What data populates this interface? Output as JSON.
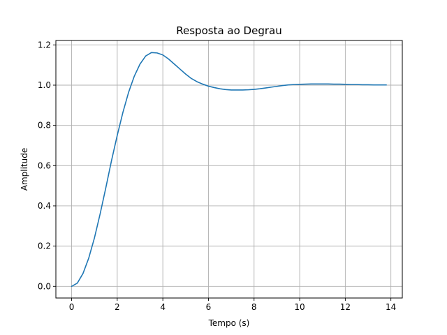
{
  "chart_data": {
    "type": "line",
    "title": "Resposta ao Degrau",
    "xlabel": "Tempo (s)",
    "ylabel": "Amplitude",
    "xlim": [
      -0.69,
      14.5
    ],
    "ylim": [
      -0.058,
      1.222
    ],
    "xticks": [
      0,
      2,
      4,
      6,
      8,
      10,
      12,
      14
    ],
    "yticks": [
      0.0,
      0.2,
      0.4,
      0.6,
      0.8,
      1.0,
      1.2
    ],
    "xtick_labels": [
      "0",
      "2",
      "4",
      "6",
      "8",
      "10",
      "12",
      "14"
    ],
    "ytick_labels": [
      "0.0",
      "0.2",
      "0.4",
      "0.6",
      "0.8",
      "1.0",
      "1.2"
    ],
    "grid": true,
    "legend": "none",
    "series": [
      {
        "color": "#1f77b4",
        "x": [
          0,
          0.25,
          0.5,
          0.75,
          1.0,
          1.25,
          1.5,
          1.75,
          2.0,
          2.25,
          2.5,
          2.75,
          3.0,
          3.25,
          3.5,
          3.75,
          4.0,
          4.25,
          4.5,
          4.75,
          5.0,
          5.25,
          5.5,
          5.75,
          6.0,
          6.25,
          6.5,
          6.75,
          7.0,
          7.25,
          7.5,
          7.75,
          8.0,
          8.25,
          8.5,
          8.75,
          9.0,
          9.25,
          9.5,
          9.75,
          10.0,
          10.25,
          10.5,
          10.75,
          11.0,
          11.25,
          11.5,
          11.75,
          12.0,
          12.25,
          12.5,
          12.75,
          13.0,
          13.25,
          13.5,
          13.8
        ],
        "y": [
          0.0,
          0.016,
          0.064,
          0.14,
          0.24,
          0.36,
          0.49,
          0.625,
          0.75,
          0.865,
          0.965,
          1.045,
          1.105,
          1.145,
          1.162,
          1.16,
          1.15,
          1.13,
          1.105,
          1.08,
          1.055,
          1.033,
          1.017,
          1.005,
          0.995,
          0.988,
          0.982,
          0.978,
          0.976,
          0.976,
          0.976,
          0.977,
          0.979,
          0.982,
          0.986,
          0.99,
          0.994,
          0.998,
          1.001,
          1.003,
          1.004,
          1.005,
          1.006,
          1.006,
          1.006,
          1.006,
          1.005,
          1.005,
          1.004,
          1.003,
          1.003,
          1.002,
          1.002,
          1.001,
          1.001,
          1.001
        ]
      }
    ]
  }
}
